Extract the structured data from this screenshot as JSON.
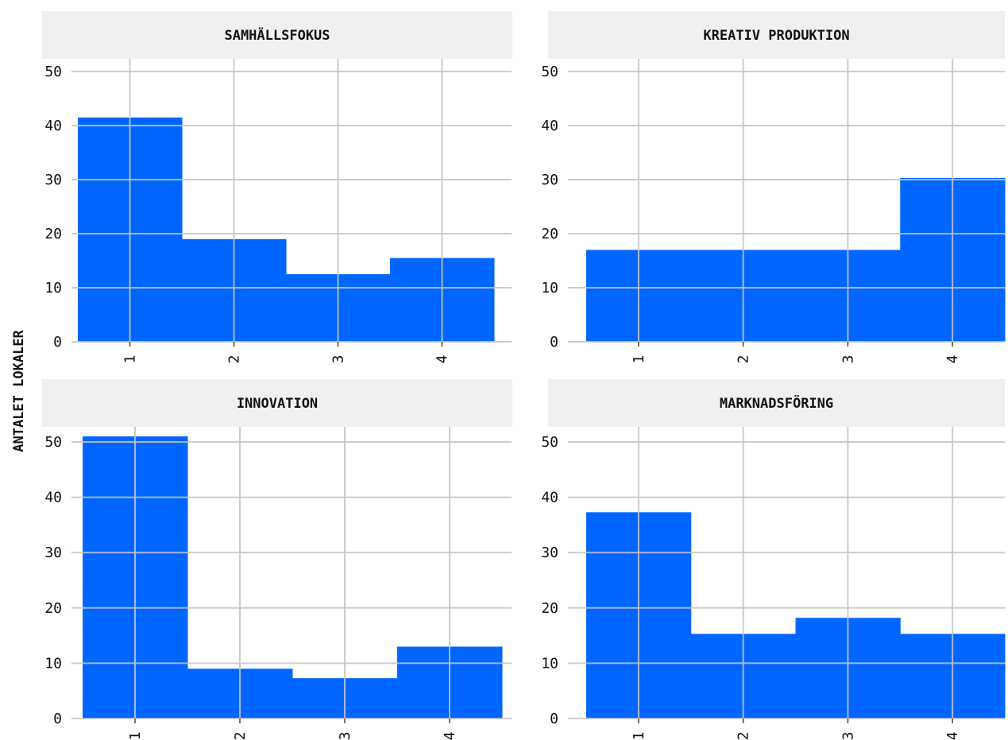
{
  "chart_data": {
    "type": "bar",
    "ylabel": "ANTALET LOKALER",
    "ylim": [
      0,
      51
    ],
    "yticks": [
      0,
      10,
      20,
      30,
      40,
      50
    ],
    "categories": [
      "1",
      "2",
      "3",
      "4"
    ],
    "bar_color": "#0066ff",
    "grid": true,
    "panels": [
      {
        "title": "SAMHÄLLSFOKUS",
        "values": [
          41.5,
          19,
          12.5,
          15.5
        ]
      },
      {
        "title": "KREATIV PRODUKTION",
        "values": [
          17,
          17,
          17,
          30.3
        ]
      },
      {
        "title": "INNOVATION",
        "values": [
          51,
          9,
          7.3,
          13
        ]
      },
      {
        "title": "MARKNADSFÖRING",
        "values": [
          37.3,
          15.3,
          18.2,
          15.3
        ]
      }
    ]
  }
}
